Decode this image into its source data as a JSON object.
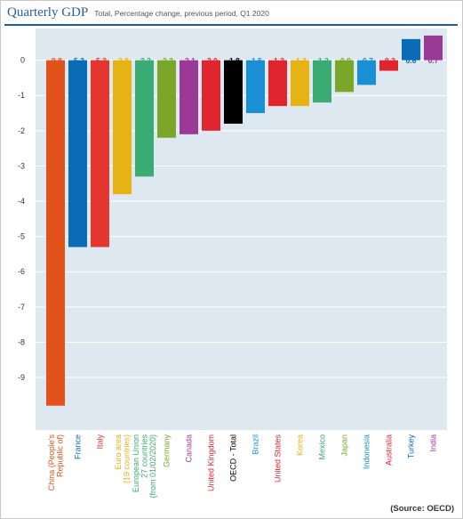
{
  "header": {
    "title": "Quarterly GDP",
    "subtitle": "Total, Percentage change, previous period, Q1 2020"
  },
  "source": "(Source: OECD)",
  "colors": {
    "plot_background": "#dde8f0",
    "gridline": "#ffffff",
    "title": "#2a5d9f",
    "rule": "#1f5ba6"
  },
  "chart_data": {
    "type": "bar",
    "title": "",
    "xlabel": "",
    "ylabel": "",
    "ylim": [
      -10,
      0.9
    ],
    "yticks": [
      0,
      -1,
      -2,
      -3,
      -4,
      -5,
      -6,
      -7,
      -8,
      -9
    ],
    "grid": true,
    "legend": "none",
    "categories": [
      "China (People's Republic of)",
      "France",
      "Italy",
      "Euro area (19 countries)",
      "European Union 27 countries (from 01/02/2020)",
      "Germany",
      "Canada",
      "United Kingdom",
      "OECD - Total",
      "Brazil",
      "United States",
      "Korea",
      "Mexico",
      "Japan",
      "Indonesia",
      "Australia",
      "Turkey",
      "India"
    ],
    "category_lines": [
      [
        "China (People's",
        "Republic of)"
      ],
      [
        "France"
      ],
      [
        "Italy"
      ],
      [
        "Euro area",
        "(19 countries)"
      ],
      [
        "European Union",
        "27 countries",
        "(from 01/02/2020)"
      ],
      [
        "Germany"
      ],
      [
        "Canada"
      ],
      [
        "United Kingdom"
      ],
      [
        "OECD - Total"
      ],
      [
        "Brazil"
      ],
      [
        "United States"
      ],
      [
        "Korea"
      ],
      [
        "Mexico"
      ],
      [
        "Japan"
      ],
      [
        "Indonesia"
      ],
      [
        "Australia"
      ],
      [
        "Turkey"
      ],
      [
        "India"
      ]
    ],
    "values": [
      -9.8,
      -5.3,
      -5.3,
      -3.8,
      -3.3,
      -2.2,
      -2.1,
      -2.0,
      -1.8,
      -1.5,
      -1.3,
      -1.3,
      -1.2,
      -0.9,
      -0.7,
      -0.3,
      0.6,
      0.7
    ],
    "value_labels": [
      "-9.8",
      "-5.3",
      "-5.3",
      "-3.8",
      "-3.3",
      "-2.2",
      "-2.1",
      "-2.0",
      "-1.8",
      "-1.5",
      "-1.3",
      "-1.3",
      "-1.2",
      "-0.9",
      "-0.7",
      "-0.3",
      "0.6",
      "0.7"
    ],
    "colors": [
      "#e1531b",
      "#0a6bb7",
      "#e5362f",
      "#e6b214",
      "#3aab72",
      "#7aa62a",
      "#9a3a96",
      "#e0252f",
      "#000000",
      "#1a8fd4",
      "#e0252f",
      "#e6b214",
      "#3aab72",
      "#7aa62a",
      "#1a8fd4",
      "#e0252f",
      "#0a6bb7",
      "#9a3a96"
    ]
  }
}
